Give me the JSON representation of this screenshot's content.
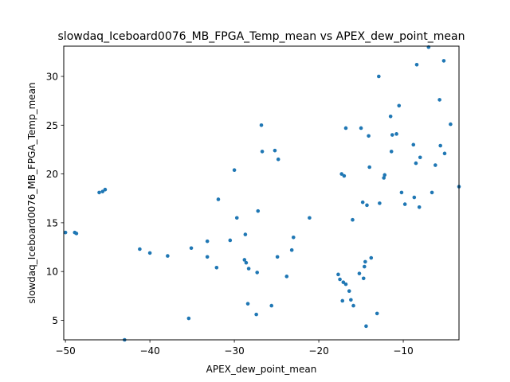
{
  "chart_data": {
    "type": "scatter",
    "title": "slowdaq_Iceboard0076_MB_FPGA_Temp_mean vs APEX_dew_point_mean",
    "xlabel": "APEX_dew_point_mean",
    "ylabel": "slowdaq_Iceboard0076_MB_FPGA_Temp_mean",
    "xlim": [
      -50.2,
      -3.4
    ],
    "ylim": [
      3.0,
      33.1
    ],
    "xticks": [
      -50,
      -40,
      -30,
      -20,
      -10
    ],
    "xtick_labels": [
      "−50",
      "−40",
      "−30",
      "−20",
      "−10"
    ],
    "yticks": [
      5,
      10,
      15,
      20,
      25,
      30
    ],
    "ytick_labels": [
      "5",
      "10",
      "15",
      "20",
      "25",
      "30"
    ],
    "grid": false,
    "marker_color": "#1f77b4",
    "points": [
      [
        -50.0,
        14.0
      ],
      [
        -48.9,
        14.0
      ],
      [
        -48.7,
        13.9
      ],
      [
        -46.0,
        18.1
      ],
      [
        -45.6,
        18.2
      ],
      [
        -45.3,
        18.4
      ],
      [
        -43.0,
        3.0
      ],
      [
        -41.2,
        12.3
      ],
      [
        -40.0,
        11.9
      ],
      [
        -37.9,
        11.6
      ],
      [
        -35.4,
        5.2
      ],
      [
        -35.1,
        12.4
      ],
      [
        -33.2,
        13.1
      ],
      [
        -33.2,
        11.5
      ],
      [
        -32.1,
        10.4
      ],
      [
        -31.9,
        17.4
      ],
      [
        -30.5,
        13.2
      ],
      [
        -30.0,
        20.4
      ],
      [
        -29.7,
        15.5
      ],
      [
        -28.8,
        11.2
      ],
      [
        -28.7,
        13.8
      ],
      [
        -28.6,
        10.9
      ],
      [
        -28.4,
        6.7
      ],
      [
        -28.3,
        10.3
      ],
      [
        -27.4,
        5.6
      ],
      [
        -27.3,
        9.9
      ],
      [
        -27.2,
        16.2
      ],
      [
        -26.8,
        25.0
      ],
      [
        -26.7,
        22.3
      ],
      [
        -25.6,
        6.5
      ],
      [
        -25.2,
        22.4
      ],
      [
        -24.9,
        11.5
      ],
      [
        -24.8,
        21.5
      ],
      [
        -23.8,
        9.5
      ],
      [
        -23.2,
        12.2
      ],
      [
        -23.0,
        13.5
      ],
      [
        -21.1,
        15.5
      ],
      [
        -17.7,
        9.7
      ],
      [
        -17.5,
        9.2
      ],
      [
        -17.3,
        20.0
      ],
      [
        -17.2,
        7.0
      ],
      [
        -17.1,
        8.9
      ],
      [
        -17.0,
        19.8
      ],
      [
        -16.8,
        24.7
      ],
      [
        -16.8,
        8.7
      ],
      [
        -16.4,
        8.0
      ],
      [
        -16.2,
        7.1
      ],
      [
        -16.0,
        15.3
      ],
      [
        -15.9,
        6.5
      ],
      [
        -15.2,
        9.8
      ],
      [
        -15.0,
        24.7
      ],
      [
        -14.8,
        17.1
      ],
      [
        -14.7,
        9.3
      ],
      [
        -14.6,
        10.5
      ],
      [
        -14.5,
        11.0
      ],
      [
        -14.4,
        4.4
      ],
      [
        -14.3,
        16.8
      ],
      [
        -14.1,
        23.9
      ],
      [
        -14.0,
        20.7
      ],
      [
        -13.8,
        11.4
      ],
      [
        -13.1,
        5.7
      ],
      [
        -12.9,
        30.0
      ],
      [
        -12.8,
        17.0
      ],
      [
        -12.3,
        19.6
      ],
      [
        -12.2,
        19.9
      ],
      [
        -11.5,
        25.9
      ],
      [
        -11.4,
        22.3
      ],
      [
        -11.3,
        24.0
      ],
      [
        -10.8,
        24.1
      ],
      [
        -10.5,
        27.0
      ],
      [
        -10.2,
        18.1
      ],
      [
        -9.8,
        16.9
      ],
      [
        -8.8,
        23.0
      ],
      [
        -8.7,
        17.6
      ],
      [
        -8.5,
        21.1
      ],
      [
        -8.4,
        31.2
      ],
      [
        -8.1,
        16.6
      ],
      [
        -8.0,
        21.7
      ],
      [
        -7.0,
        33.0
      ],
      [
        -6.6,
        18.1
      ],
      [
        -6.2,
        20.9
      ],
      [
        -5.7,
        27.6
      ],
      [
        -5.6,
        22.9
      ],
      [
        -5.2,
        31.6
      ],
      [
        -5.1,
        22.1
      ],
      [
        -4.4,
        25.1
      ],
      [
        -3.4,
        18.7
      ]
    ]
  }
}
